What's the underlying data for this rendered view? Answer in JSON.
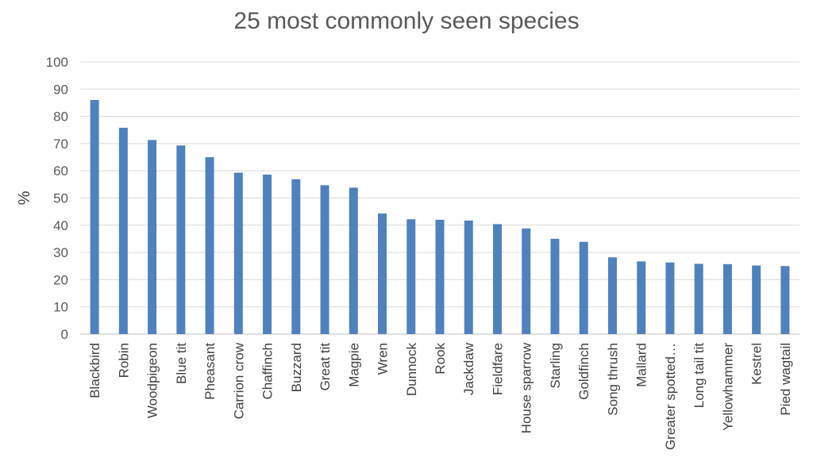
{
  "chart_data": {
    "type": "bar",
    "title": "25 most commonly seen species",
    "xlabel": "",
    "ylabel": "%",
    "ylim": [
      0,
      100
    ],
    "yticks": [
      0,
      10,
      20,
      30,
      40,
      50,
      60,
      70,
      80,
      90,
      100
    ],
    "grid": true,
    "bar_color": "#4f81bd",
    "categories": [
      "Blackbird",
      "Robin",
      "Woodpigeon",
      "Blue tit",
      "Pheasant",
      "Carrion crow",
      "Chaffinch",
      "Buzzard",
      "Great tit",
      "Magpie",
      "Wren",
      "Dunnock",
      "Rook",
      "Jackdaw",
      "Fieldfare",
      "House sparrow",
      "Starling",
      "Goldfinch",
      "Song thrush",
      "Mallard",
      "Greater spotted…",
      "Long tail tit",
      "Yellowhammer",
      "Kestrel",
      "Pied wagtail"
    ],
    "values": [
      86,
      75.8,
      71.3,
      69.3,
      65,
      59.3,
      58.6,
      56.9,
      54.7,
      53.8,
      44.3,
      42.2,
      42,
      41.7,
      40.4,
      38.8,
      35,
      33.9,
      28.2,
      26.7,
      26.3,
      25.8,
      25.7,
      25.2,
      25
    ]
  }
}
